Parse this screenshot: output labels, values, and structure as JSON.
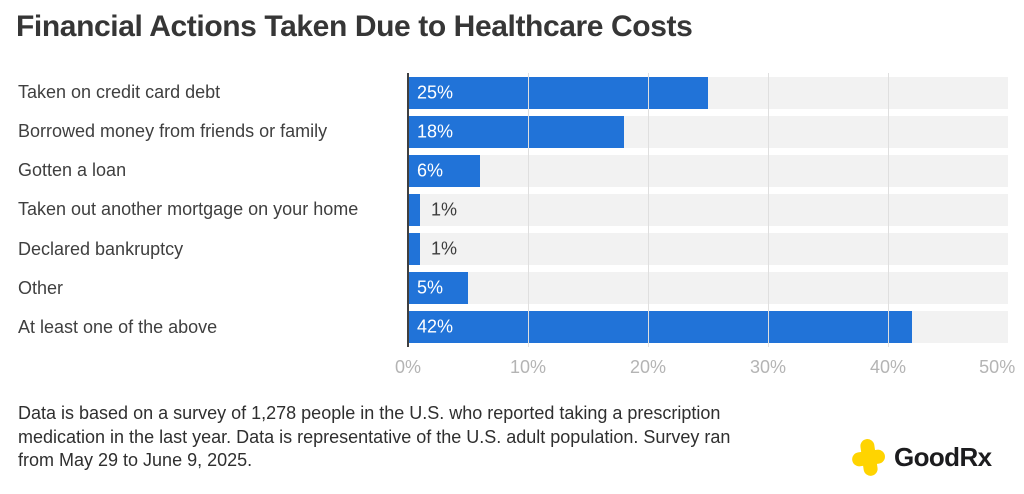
{
  "title": "Financial Actions Taken Due to Healthcare Costs",
  "chart_data": {
    "type": "bar",
    "orientation": "horizontal",
    "categories": [
      "Taken on credit card debt",
      "Borrowed money from friends or family",
      "Gotten a loan",
      "Taken out another mortgage on your home",
      "Declared bankruptcy",
      "Other",
      "At least one of the above"
    ],
    "values": [
      25,
      18,
      6,
      1,
      1,
      5,
      42
    ],
    "value_labels": [
      "25%",
      "18%",
      "6%",
      "1%",
      "1%",
      "5%",
      "42%"
    ],
    "xlabel": "",
    "ylabel": "",
    "xlim": [
      0,
      50
    ],
    "xticks": [
      0,
      10,
      20,
      30,
      40,
      50
    ],
    "xtick_labels": [
      "0%",
      "10%",
      "20%",
      "30%",
      "40%",
      "50%"
    ],
    "grid": true,
    "legend": false,
    "bar_color": "#2173d8",
    "track_color": "#f2f2f2",
    "gridline_color": "#dfdfdf",
    "axis_line_color": "#3f3f3f",
    "tick_label_color": "#b4b4b4",
    "inside_label_color": "#ffffff",
    "outside_label_color": "#3d3d3d",
    "inside_label_min_value": 4
  },
  "footnote": {
    "lines": [
      "Data is based on a survey of 1,278 people in the U.S. who reported taking a prescription",
      "medication in the last year. Data is representative of the U.S. adult population. Survey ran",
      "from May 29 to June 9, 2025."
    ]
  },
  "logo": {
    "word_good": "Good",
    "word_rx": "Rx",
    "plus_color": "#FFD400",
    "text_color": "#1c1c1e"
  }
}
